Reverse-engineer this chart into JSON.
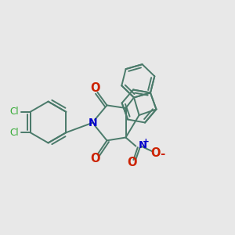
{
  "background_color": "#e8e8e8",
  "bond_color": "#4a7a6a",
  "cl_color": "#33aa33",
  "n_color": "#0000cc",
  "o_color": "#cc2200",
  "plus_color": "#0000cc",
  "minus_color": "#cc2200",
  "lw": 1.4,
  "xlim": [
    0,
    10
  ],
  "ylim": [
    0,
    10
  ]
}
